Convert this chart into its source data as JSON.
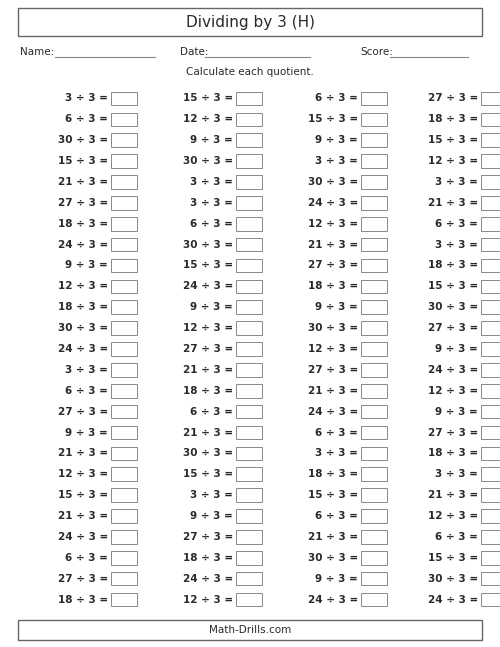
{
  "title": "Dividing by 3 (H)",
  "name_label": "Name:",
  "date_label": "Date:",
  "score_label": "Score:",
  "instruction": "Calculate each quotient.",
  "footer": "Math-Drills.com",
  "col1": [
    3,
    6,
    30,
    15,
    21,
    27,
    18,
    24,
    9,
    12,
    18,
    30,
    24,
    3,
    6,
    27,
    9,
    21,
    12,
    15,
    21,
    24,
    6,
    27,
    18
  ],
  "col2": [
    15,
    12,
    9,
    30,
    3,
    3,
    6,
    30,
    15,
    24,
    9,
    12,
    27,
    21,
    18,
    6,
    21,
    30,
    15,
    3,
    9,
    27,
    18,
    24,
    12
  ],
  "col3": [
    6,
    15,
    9,
    3,
    30,
    24,
    12,
    21,
    27,
    18,
    9,
    30,
    12,
    27,
    21,
    24,
    6,
    3,
    18,
    15,
    6,
    21,
    30,
    9,
    24
  ],
  "col4": [
    27,
    18,
    15,
    12,
    3,
    21,
    6,
    3,
    18,
    15,
    30,
    27,
    9,
    24,
    12,
    9,
    27,
    18,
    3,
    21,
    12,
    6,
    15,
    30,
    24
  ],
  "bg_color": "#ffffff",
  "text_color": "#2a2a2a",
  "title_fontsize": 11,
  "label_fontsize": 7.5,
  "problem_fontsize": 7.5,
  "footer_fontsize": 7.5
}
